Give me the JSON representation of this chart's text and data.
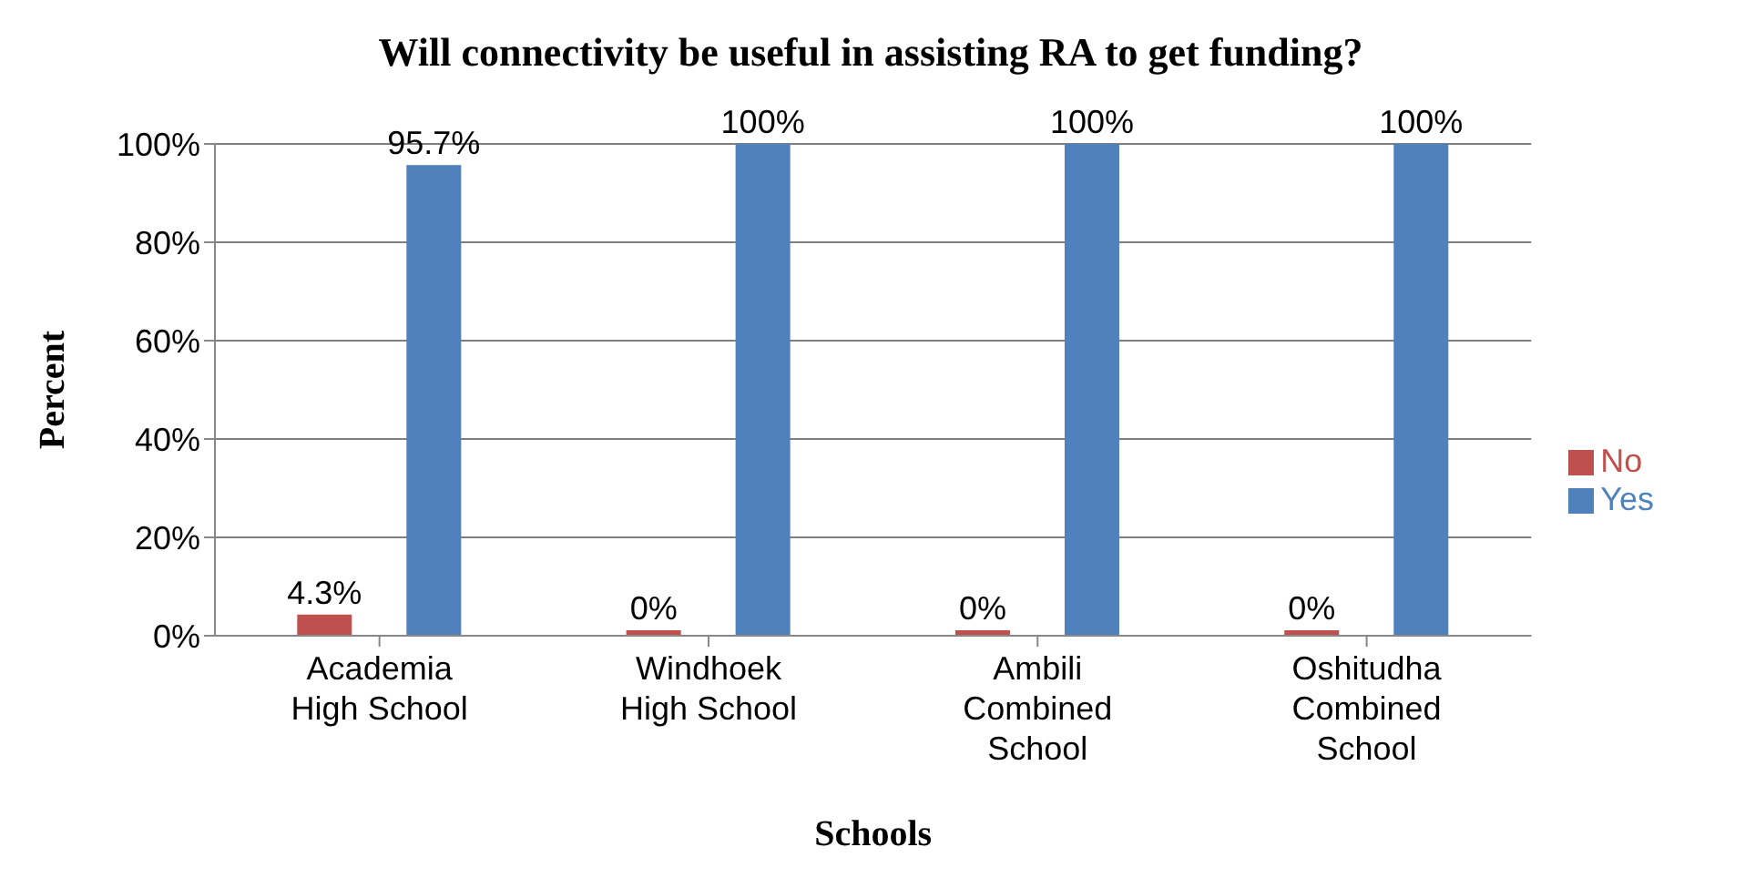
{
  "chart_data": {
    "type": "bar",
    "title": "Will connectivity be useful in assisting RA to get funding?",
    "xlabel": "Schools",
    "ylabel": "Percent",
    "categories": [
      "Academia High School",
      "Windhoek High School",
      "Ambili Combined School",
      "Oshitudha Combined School"
    ],
    "series": [
      {
        "name": "No",
        "color": "#c0504d",
        "values": [
          4.3,
          0,
          0,
          0
        ],
        "value_labels": [
          "4.3%",
          "0%",
          "0%",
          "0%"
        ]
      },
      {
        "name": "Yes",
        "color": "#4f81bd",
        "values": [
          95.7,
          100,
          100,
          100
        ],
        "value_labels": [
          "95.7%",
          "100%",
          "100%",
          "100%"
        ]
      }
    ],
    "ylim": [
      0,
      100
    ],
    "yticks": [
      {
        "value": 0,
        "label": "0%"
      },
      {
        "value": 20,
        "label": "20%"
      },
      {
        "value": 40,
        "label": "40%"
      },
      {
        "value": 60,
        "label": "60%"
      },
      {
        "value": 80,
        "label": "80%"
      },
      {
        "value": 100,
        "label": "100%"
      }
    ],
    "grid": "y",
    "legend": "right"
  }
}
